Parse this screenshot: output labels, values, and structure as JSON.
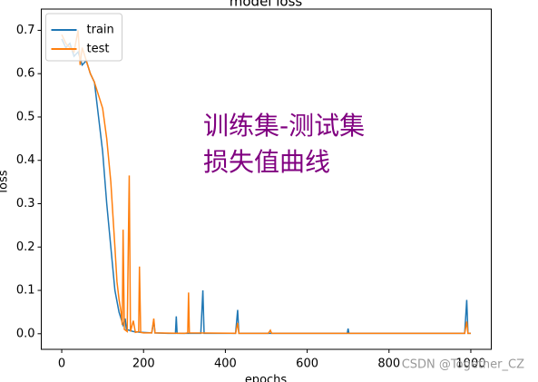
{
  "chart_data": {
    "type": "line",
    "title": "model loss",
    "x_label": "epochs",
    "y_label": "loss",
    "xlim": [
      -50,
      1050
    ],
    "ylim": [
      -0.036,
      0.749
    ],
    "xticks": [
      0,
      200,
      400,
      600,
      800,
      1000
    ],
    "yticks": [
      {
        "value": 0,
        "label": "0.0"
      },
      0.1,
      0.2,
      0.3,
      0.4,
      0.5,
      0.6,
      0.7
    ],
    "legend": "upper left",
    "series": [
      {
        "name": "train",
        "color": "#1f77b4",
        "x": [
          0,
          10,
          20,
          30,
          40,
          50,
          60,
          70,
          80,
          90,
          100,
          110,
          120,
          130,
          140,
          150,
          155,
          158,
          165,
          175,
          185,
          200,
          220,
          225,
          228,
          260,
          278,
          280,
          282,
          340,
          345,
          348,
          425,
          430,
          433,
          600,
          698,
          700,
          702,
          985,
          990,
          993,
          1000
        ],
        "values": [
          0.68,
          0.66,
          0.67,
          0.64,
          0.65,
          0.62,
          0.63,
          0.6,
          0.58,
          0.5,
          0.42,
          0.3,
          0.2,
          0.1,
          0.05,
          0.02,
          0.035,
          0.01,
          0.008,
          0.005,
          0.004,
          0.003,
          0.002,
          0.03,
          0.002,
          0.001,
          0.001,
          0.04,
          0.001,
          0.001,
          0.1,
          0.001,
          0.001,
          0.055,
          0.001,
          0.001,
          0.001,
          0.012,
          0.001,
          0.001,
          0.078,
          0.001,
          0.001
        ]
      },
      {
        "name": "test",
        "color": "#ff7f0e",
        "x": [
          0,
          10,
          20,
          30,
          40,
          45,
          50,
          60,
          70,
          80,
          90,
          100,
          110,
          120,
          130,
          135,
          140,
          145,
          148,
          150,
          153,
          160,
          165,
          168,
          175,
          180,
          188,
          190,
          193,
          200,
          220,
          225,
          228,
          300,
          308,
          310,
          312,
          425,
          430,
          433,
          505,
          510,
          513,
          985,
          990,
          993,
          1000
        ],
        "values": [
          0.69,
          0.67,
          0.66,
          0.65,
          0.7,
          0.62,
          0.66,
          0.63,
          0.6,
          0.58,
          0.55,
          0.52,
          0.45,
          0.35,
          0.2,
          0.12,
          0.08,
          0.05,
          0.02,
          0.24,
          0.01,
          0.005,
          0.365,
          0.005,
          0.03,
          0.003,
          0.005,
          0.155,
          0.003,
          0.002,
          0.002,
          0.035,
          0.002,
          0.001,
          0.002,
          0.095,
          0.002,
          0.001,
          0.025,
          0.001,
          0.001,
          0.008,
          0.001,
          0.001,
          0.028,
          0.001,
          0.001
        ]
      }
    ],
    "annotations": [
      "训练集-测试集",
      "损失值曲线"
    ],
    "watermark": "CSDN @Together_CZ"
  }
}
